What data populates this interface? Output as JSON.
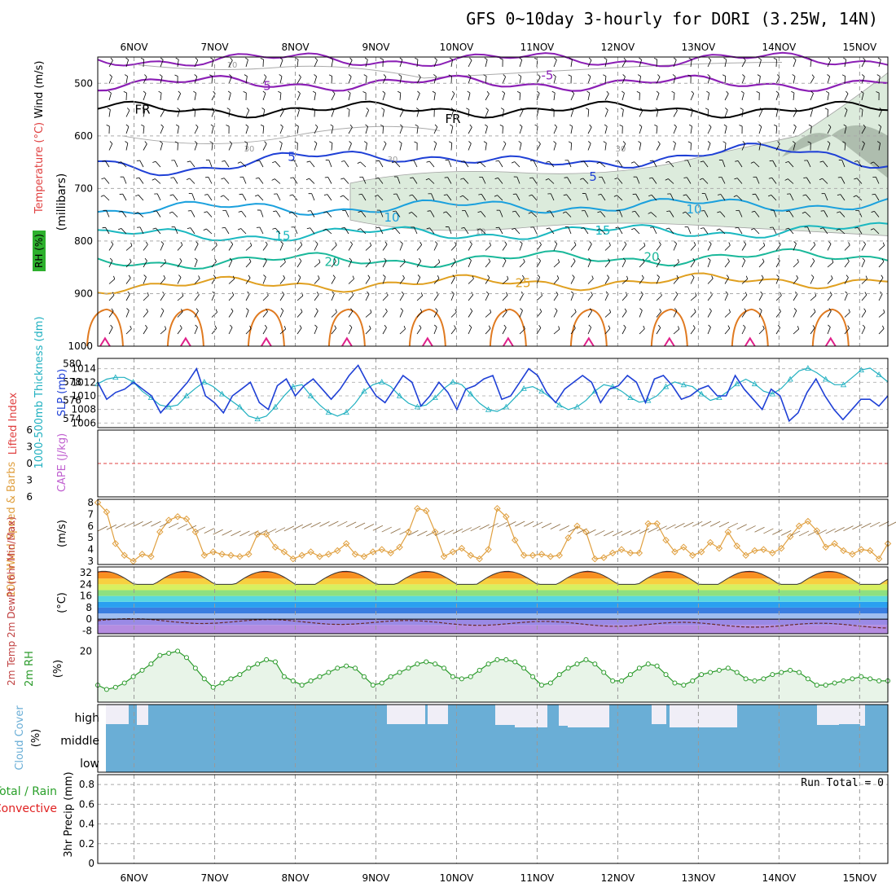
{
  "chart_data": {
    "type": "meteogram",
    "title": "GFS 0~10day 3-hourly for DORI (3.25W, 14N)",
    "x_dates": [
      "6NOV",
      "7NOV",
      "8NOV",
      "9NOV",
      "10NOV",
      "11NOV",
      "12NOV",
      "13NOV",
      "14NOV",
      "15NOV"
    ],
    "x_start_day": 5.55,
    "x_end_day": 15.35,
    "colors": {
      "temperature": "#8b1fb5",
      "temp5": "#1f40d6",
      "temp10": "#1aa0dd",
      "temp15": "#1ab8c0",
      "temp20": "#1ab89a",
      "temp25": "#e0a020",
      "temp30": "#e07a20",
      "temp35": "#e0208a",
      "rh_fill": "#dcebdc",
      "slp": "#1f40d6",
      "thickness": "#20b0c0",
      "wind10m": "#e0a040",
      "rh2m": "#2a9a2a",
      "cloud": "#6aaed6",
      "cloud_gap": "#f0eef7"
    },
    "upper_air": {
      "ylabel_left": [
        "RH (%)",
        "Temperature (°C)",
        "Wind (m/s)"
      ],
      "ylabel_right": "(millibars)",
      "y_ticks": [
        "500",
        "600",
        "700",
        "800",
        "900",
        "1000"
      ],
      "ylim": [
        450,
        1000
      ],
      "contours": [
        {
          "label": "-5",
          "pressure": 495
        },
        {
          "label": "5",
          "pressure": 500
        },
        {
          "label": "FR",
          "pressure": 550
        },
        {
          "label": "5",
          "pressure": 640
        },
        {
          "label": "10",
          "pressure": 740
        },
        {
          "label": "15",
          "pressure": 790
        },
        {
          "label": "20",
          "pressure": 830
        },
        {
          "label": "25",
          "pressure": 880
        }
      ],
      "rh_labels": [
        "10",
        "30",
        "30",
        "30",
        "10"
      ]
    },
    "slp_panel": {
      "ylabel_left": "1000-500mb Thickness (dm)",
      "ylabel_right": "SLP (mb)",
      "left_ticks": [
        "580",
        "578",
        "576",
        "574"
      ],
      "right_ticks": [
        "1014",
        "1012",
        "1010",
        "1008",
        "1006"
      ],
      "slp_values": [
        1012,
        1009.5,
        1010.5,
        1011,
        1012,
        1011,
        1010,
        1007.5,
        1009,
        1010.5,
        1012,
        1014,
        1010,
        1009,
        1007.5,
        1010,
        1011,
        1012,
        1009,
        1008,
        1011.5,
        1012.5,
        1010,
        1011.5,
        1012.5,
        1011,
        1009.5,
        1011,
        1013,
        1014.5,
        1012,
        1010,
        1009,
        1011,
        1013,
        1012,
        1008.5,
        1010,
        1012,
        1010.5,
        1008,
        1011,
        1011.5,
        1012.5,
        1013,
        1009.5,
        1010,
        1012,
        1014,
        1013,
        1010.5,
        1009,
        1011,
        1012,
        1013,
        1012,
        1009,
        1011,
        1011.5,
        1013,
        1012,
        1009,
        1012.5,
        1013,
        1011.5,
        1009.5,
        1010,
        1011,
        1011.5,
        1010,
        1010,
        1013,
        1011,
        1009.5,
        1008,
        1011,
        1010,
        1006.3,
        1007.5,
        1010.5,
        1012.5,
        1010,
        1008,
        1006.5,
        1008,
        1009.5,
        1009.5,
        1008.5,
        1010
      ],
      "thickness_values": [
        577.8,
        578.3,
        578.5,
        578.5,
        578,
        577,
        576.3,
        575.5,
        575.3,
        575.5,
        576.5,
        577.3,
        578,
        577.5,
        576.7,
        576,
        575.3,
        574.3,
        574,
        574.3,
        575.3,
        576.5,
        577.5,
        577.7,
        576.5,
        575.5,
        574.7,
        574.3,
        574.7,
        575.7,
        577,
        577.7,
        578,
        577.5,
        576.5,
        575.7,
        575.3,
        575.5,
        576.3,
        577.3,
        578,
        577.7,
        576.7,
        575.7,
        575,
        574.8,
        575.3,
        576.3,
        577.3,
        577.5,
        577,
        576.3,
        575.5,
        575,
        575.3,
        576,
        577,
        577.7,
        577.5,
        577,
        576.3,
        575.8,
        576,
        576.5,
        577.5,
        578,
        577.7,
        577.5,
        576.7,
        576,
        576.3,
        577,
        577.8,
        578.3,
        577.8,
        577,
        576.7,
        577.3,
        578.3,
        579.2,
        579.5,
        579,
        578.3,
        577.7,
        577.7,
        578.5,
        579.3,
        579.5,
        578.8,
        578
      ]
    },
    "stability_panel": {
      "ylabel_left": "Lifted Index",
      "ylabel_right": "CAPE (J/kg)",
      "ticks": [
        "6",
        "3",
        "0",
        "3",
        "6"
      ]
    },
    "wind10m_panel": {
      "ylabel_left": "10m Wind Speed & Barbs",
      "ylabel_right": "(m/s)",
      "ticks": [
        "8",
        "7",
        "6",
        "5",
        "4",
        "3"
      ],
      "values": [
        8,
        7.2,
        4.5,
        3.5,
        3,
        3.6,
        3.4,
        5.5,
        6.5,
        6.8,
        6.6,
        5.5,
        3.5,
        3.8,
        3.6,
        3.5,
        3.4,
        3.6,
        5.3,
        5.3,
        4.2,
        3.8,
        3.2,
        3.5,
        3.8,
        3.4,
        3.6,
        3.9,
        4.5,
        3.6,
        3.4,
        3.8,
        4,
        3.7,
        4.2,
        5.5,
        7.5,
        7.3,
        5.5,
        3.4,
        3.8,
        4.1,
        3.5,
        3.2,
        4,
        7.5,
        6.8,
        4.8,
        3.5,
        3.5,
        3.6,
        3.4,
        3.5,
        5,
        6,
        5.5,
        3.2,
        3.3,
        3.7,
        4,
        3.7,
        3.7,
        6.2,
        6.2,
        4.8,
        3.8,
        4.2,
        3.5,
        3.8,
        4.6,
        4.1,
        5.5,
        4.3,
        3.5,
        3.9,
        4,
        3.7,
        4.1,
        5.1,
        6,
        6.4,
        5.6,
        4.2,
        4.5,
        3.9,
        3.6,
        4,
        3.9,
        3.2,
        4.5
      ]
    },
    "temp2m_panel": {
      "ylabel_left": "2m Temp 2m DewPt (6hr Min/Max)",
      "ylabel_right": "(°C)",
      "ticks": [
        "32",
        "24",
        "16",
        "8",
        "0",
        "-8"
      ],
      "daily_max": [
        33,
        33,
        33,
        33,
        33,
        33,
        33,
        33,
        33,
        34
      ],
      "daily_min": [
        25,
        24,
        24,
        24,
        24,
        24,
        24,
        24,
        24,
        25
      ]
    },
    "rh2m_panel": {
      "ylabel_left": "2m RH",
      "ylabel_right": "(%)",
      "ticks": [
        "20"
      ],
      "values": [
        12,
        11,
        11.5,
        12.5,
        14,
        15.5,
        17,
        19,
        19.5,
        20,
        18.5,
        16,
        13.5,
        11.5,
        12.5,
        13.5,
        14.5,
        16,
        17,
        18,
        17.5,
        14,
        13,
        12,
        13,
        14,
        15,
        16,
        16.5,
        16,
        14,
        12,
        12.5,
        14,
        15,
        16,
        17,
        17.5,
        17,
        16,
        14,
        13.5,
        14,
        15.5,
        17,
        18,
        18,
        17.5,
        16,
        14,
        12,
        12.5,
        14.5,
        16,
        17,
        18,
        17,
        15,
        13,
        13,
        14.5,
        16,
        17,
        16.5,
        14.5,
        12.5,
        12,
        13,
        14.5,
        15,
        15.5,
        16,
        15,
        13.5,
        13,
        13.5,
        14.5,
        15,
        15.5,
        15,
        13.5,
        12,
        12,
        12.5,
        13,
        13.5,
        14,
        13.5,
        13,
        13
      ]
    },
    "cloud_panel": {
      "ylabel_left": "Cloud Cover",
      "ylabel_right": "(%)",
      "levels": [
        "high",
        "middle",
        "low"
      ]
    },
    "precip_panel": {
      "ylabel_left": "3hr Precip (mm)",
      "legend": [
        "Total / Rain",
        "Convective"
      ],
      "ticks": [
        "0.8",
        "0.6",
        "0.4",
        "0.2",
        "0"
      ],
      "ylim": [
        0,
        0.9
      ],
      "run_total_label": "Run Total = 0"
    }
  }
}
